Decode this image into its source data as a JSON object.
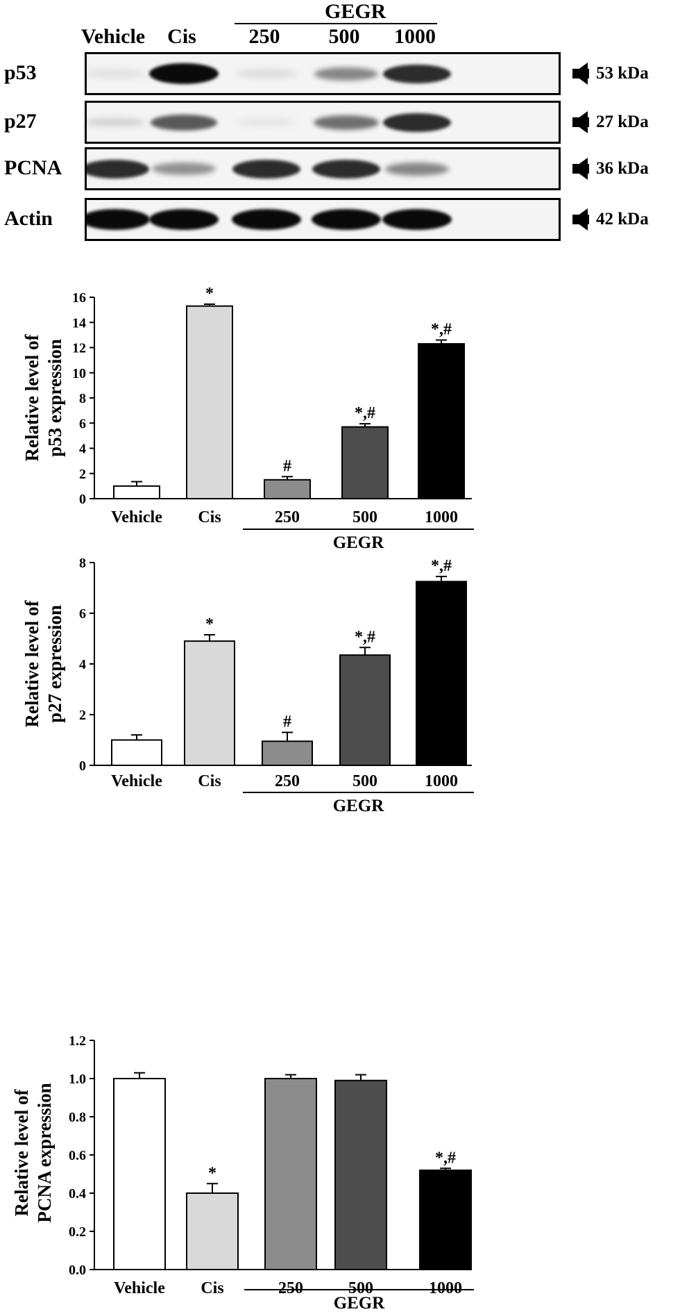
{
  "blot": {
    "group_label": "GEGR",
    "lanes": [
      "Vehicle",
      "Cis",
      "250",
      "500",
      "1000"
    ],
    "rows": [
      {
        "name": "p53",
        "kda": "53 kDa",
        "intensity": [
          0.06,
          1.0,
          0.08,
          0.45,
          0.85
        ]
      },
      {
        "name": "p27",
        "kda": "27 kDa",
        "intensity": [
          0.12,
          0.65,
          0.04,
          0.55,
          0.85
        ]
      },
      {
        "name": "PCNA",
        "kda": "36 kDa",
        "intensity": [
          0.85,
          0.4,
          0.85,
          0.85,
          0.45
        ]
      },
      {
        "name": "Actin",
        "kda": "42 kDa",
        "intensity": [
          1.0,
          1.0,
          1.0,
          1.0,
          1.0
        ]
      }
    ]
  },
  "chart_data": [
    {
      "type": "bar",
      "categories": [
        "Vehicle",
        "Cis",
        "250",
        "500",
        "1000"
      ],
      "group_label": "GEGR",
      "values": [
        1.0,
        15.3,
        1.5,
        5.7,
        12.3
      ],
      "errors": [
        0.35,
        0.15,
        0.25,
        0.25,
        0.3
      ],
      "significance": [
        "",
        "*",
        "#",
        "*,#",
        "*,#"
      ],
      "ylabel": [
        "Relative level of",
        "p53 expression"
      ],
      "ylim": [
        0,
        16
      ],
      "yticks": [
        0,
        2,
        4,
        6,
        8,
        10,
        12,
        14,
        16
      ],
      "ytick_labels": [
        "0",
        "2",
        "4",
        "6",
        "8",
        "10",
        "12",
        "14",
        "16"
      ],
      "bar_colors": [
        "#ffffff",
        "#d9d9d9",
        "#8c8c8c",
        "#4d4d4d",
        "#000000"
      ]
    },
    {
      "type": "bar",
      "categories": [
        "Vehicle",
        "Cis",
        "250",
        "500",
        "1000"
      ],
      "group_label": "GEGR",
      "values": [
        1.0,
        4.9,
        0.95,
        4.35,
        7.25
      ],
      "errors": [
        0.2,
        0.25,
        0.35,
        0.3,
        0.2
      ],
      "significance": [
        "",
        "*",
        "#",
        "*,#",
        "*,#"
      ],
      "ylabel": [
        "Relative level of",
        "p27 expression"
      ],
      "ylim": [
        0,
        8
      ],
      "yticks": [
        0,
        2,
        4,
        6,
        8
      ],
      "ytick_labels": [
        "0",
        "2",
        "4",
        "6",
        "8"
      ],
      "bar_colors": [
        "#ffffff",
        "#d9d9d9",
        "#8c8c8c",
        "#4d4d4d",
        "#000000"
      ]
    },
    {
      "type": "bar",
      "categories": [
        "Vehicle",
        "Cis",
        "250",
        "500",
        "1000"
      ],
      "group_label": "GEGR",
      "values": [
        1.0,
        0.4,
        1.0,
        0.99,
        0.52
      ],
      "errors": [
        0.03,
        0.05,
        0.02,
        0.03,
        0.01
      ],
      "significance": [
        "",
        "*",
        "",
        "",
        "*,#"
      ],
      "ylabel": [
        "Relative level of",
        "PCNA expression"
      ],
      "ylim": [
        0,
        1.2
      ],
      "yticks": [
        0,
        0.2,
        0.4,
        0.6,
        0.8,
        1.0,
        1.2
      ],
      "ytick_labels": [
        "0.0",
        "0.2",
        "0.4",
        "0.6",
        "0.8",
        "1.0",
        "1.2"
      ],
      "bar_colors": [
        "#ffffff",
        "#d9d9d9",
        "#8c8c8c",
        "#4d4d4d",
        "#000000"
      ]
    }
  ]
}
